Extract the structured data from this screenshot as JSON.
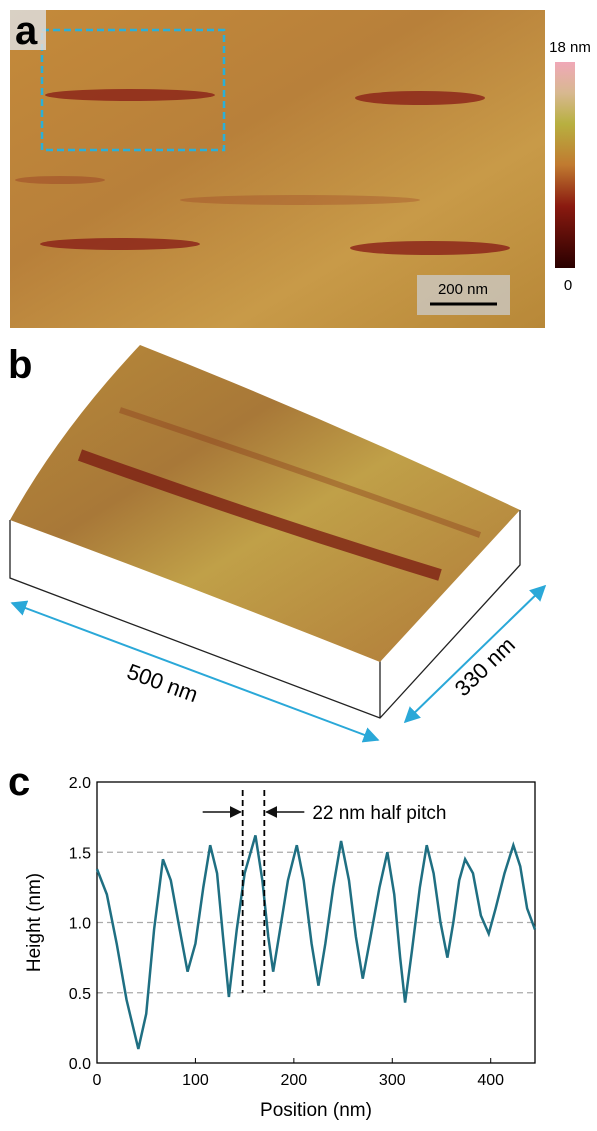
{
  "panels": {
    "a": {
      "label": "a",
      "colorbar_max": "18 nm",
      "colorbar_min": "0",
      "scale_bar": "200 nm"
    },
    "b": {
      "label": "b",
      "length": "500 nm",
      "width": "330 nm"
    },
    "c": {
      "label": "c"
    }
  },
  "chart_data": {
    "type": "line",
    "x_label": "Position (nm)",
    "y_label": "Height (nm)",
    "annotation": "22 nm half pitch",
    "half_pitch_markers": [
      148,
      170
    ],
    "xlim": [
      0,
      445
    ],
    "ylim": [
      0,
      2
    ],
    "xticks": [
      0,
      100,
      200,
      300,
      400
    ],
    "yticks": [
      {
        "value": 0,
        "label": "0.0"
      },
      0.5,
      {
        "value": 1,
        "label": "1.0"
      },
      1.5,
      {
        "value": 2,
        "label": "2.0"
      }
    ],
    "grid": true,
    "series": [
      {
        "color": "#1f6f82",
        "x": [
          0,
          10,
          20,
          30,
          42,
          50,
          58,
          67,
          75,
          84,
          92,
          100,
          108,
          115,
          122,
          128,
          134,
          142,
          150,
          161,
          168,
          174,
          179,
          186,
          194,
          203,
          210,
          218,
          225,
          232,
          240,
          248,
          256,
          263,
          270,
          278,
          287,
          295,
          302,
          308,
          313,
          320,
          328,
          335,
          342,
          349,
          356,
          362,
          368,
          374,
          382,
          390,
          398,
          405,
          414,
          423,
          430,
          437,
          445
        ],
        "values": [
          1.38,
          1.2,
          0.85,
          0.45,
          0.1,
          0.35,
          0.95,
          1.45,
          1.3,
          0.95,
          0.65,
          0.85,
          1.25,
          1.55,
          1.35,
          0.9,
          0.47,
          0.95,
          1.35,
          1.62,
          1.3,
          0.9,
          0.65,
          0.95,
          1.3,
          1.55,
          1.3,
          0.85,
          0.55,
          0.85,
          1.25,
          1.58,
          1.3,
          0.9,
          0.6,
          0.9,
          1.25,
          1.5,
          1.2,
          0.75,
          0.43,
          0.8,
          1.25,
          1.55,
          1.35,
          1.0,
          0.75,
          1.0,
          1.3,
          1.45,
          1.35,
          1.05,
          0.92,
          1.1,
          1.35,
          1.55,
          1.4,
          1.1,
          0.95
        ]
      }
    ]
  }
}
